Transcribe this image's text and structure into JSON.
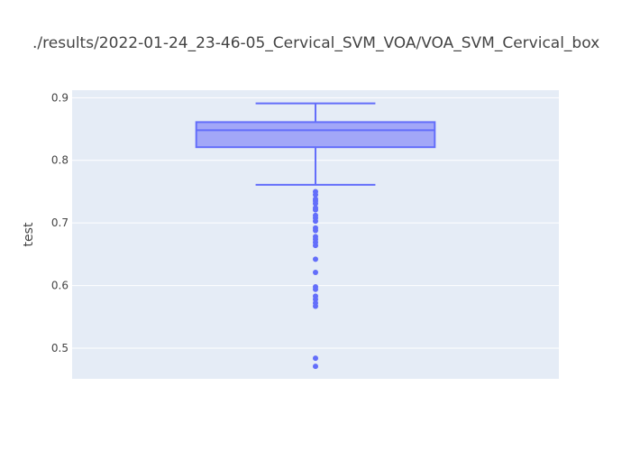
{
  "chart_data": {
    "type": "box",
    "title": "./results/2022-01-24_23-46-05_Cervical_SVM_VOA/VOA_SVM_Cervical_box",
    "xlabel": "",
    "ylabel": "test",
    "ylim": [
      0.451,
      0.912
    ],
    "yticks": [
      "0.5",
      "0.6",
      "0.7",
      "0.8",
      "0.9"
    ],
    "grid": true,
    "series": [
      {
        "upper_fence": 0.891,
        "q3": 0.861,
        "median": 0.848,
        "q1": 0.821,
        "lower_fence": 0.761,
        "outliers": [
          0.75,
          0.745,
          0.738,
          0.735,
          0.731,
          0.724,
          0.721,
          0.712,
          0.708,
          0.703,
          0.692,
          0.688,
          0.678,
          0.674,
          0.669,
          0.664,
          0.642,
          0.621,
          0.598,
          0.594,
          0.583,
          0.578,
          0.572,
          0.567,
          0.484,
          0.471
        ]
      }
    ],
    "colors": {
      "box_line": "#636efa",
      "box_fill": "#a2a7f8",
      "plot_bg": "#e5ecf6",
      "grid": "#ffffff",
      "text": "#444444"
    }
  }
}
